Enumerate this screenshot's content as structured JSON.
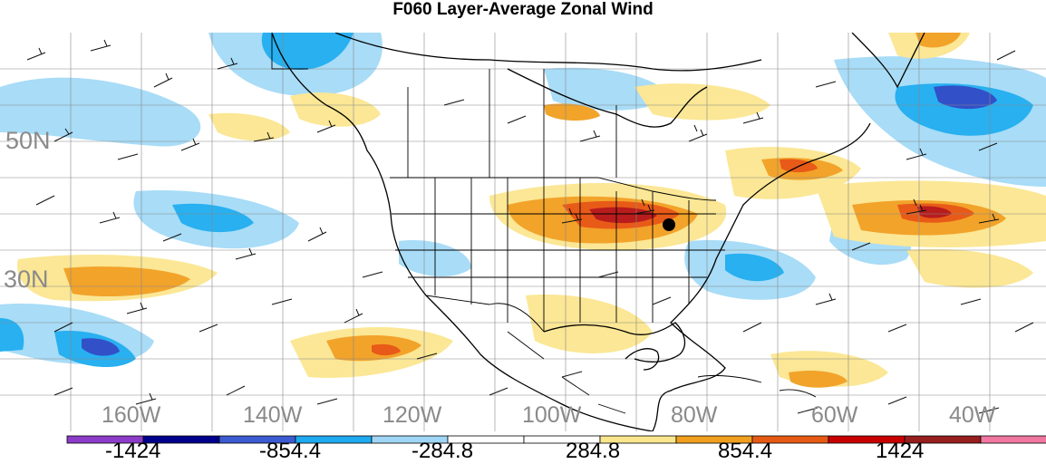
{
  "title": "F060 Layer-Average Zonal Wind",
  "lat_labels": [
    "50N",
    "30N"
  ],
  "lon_labels": [
    "160W",
    "140W",
    "120W",
    "100W",
    "80W",
    "60W",
    "40W"
  ],
  "colorbar": {
    "colors": [
      "#8c3cc8",
      "#00008b",
      "#3c5ad2",
      "#1eaaf0",
      "#a0d6f5",
      "#ffffff",
      "#ffffff",
      "#fae68c",
      "#f0a01e",
      "#e65a14",
      "#c80000",
      "#961e1e",
      "#f078a0"
    ],
    "tick_labels": [
      "-1424",
      "-854.4",
      "-284.8",
      "284.8",
      "854.4",
      "1424"
    ]
  },
  "map": {
    "colors": {
      "light_blue": "#a8dcf7",
      "mid_blue": "#28b0f0",
      "dark_blue": "#3250c8",
      "light_yellow": "#fbe795",
      "orange": "#f2a32a",
      "red_orange": "#e85a18",
      "dark_red": "#b81c1c"
    }
  }
}
